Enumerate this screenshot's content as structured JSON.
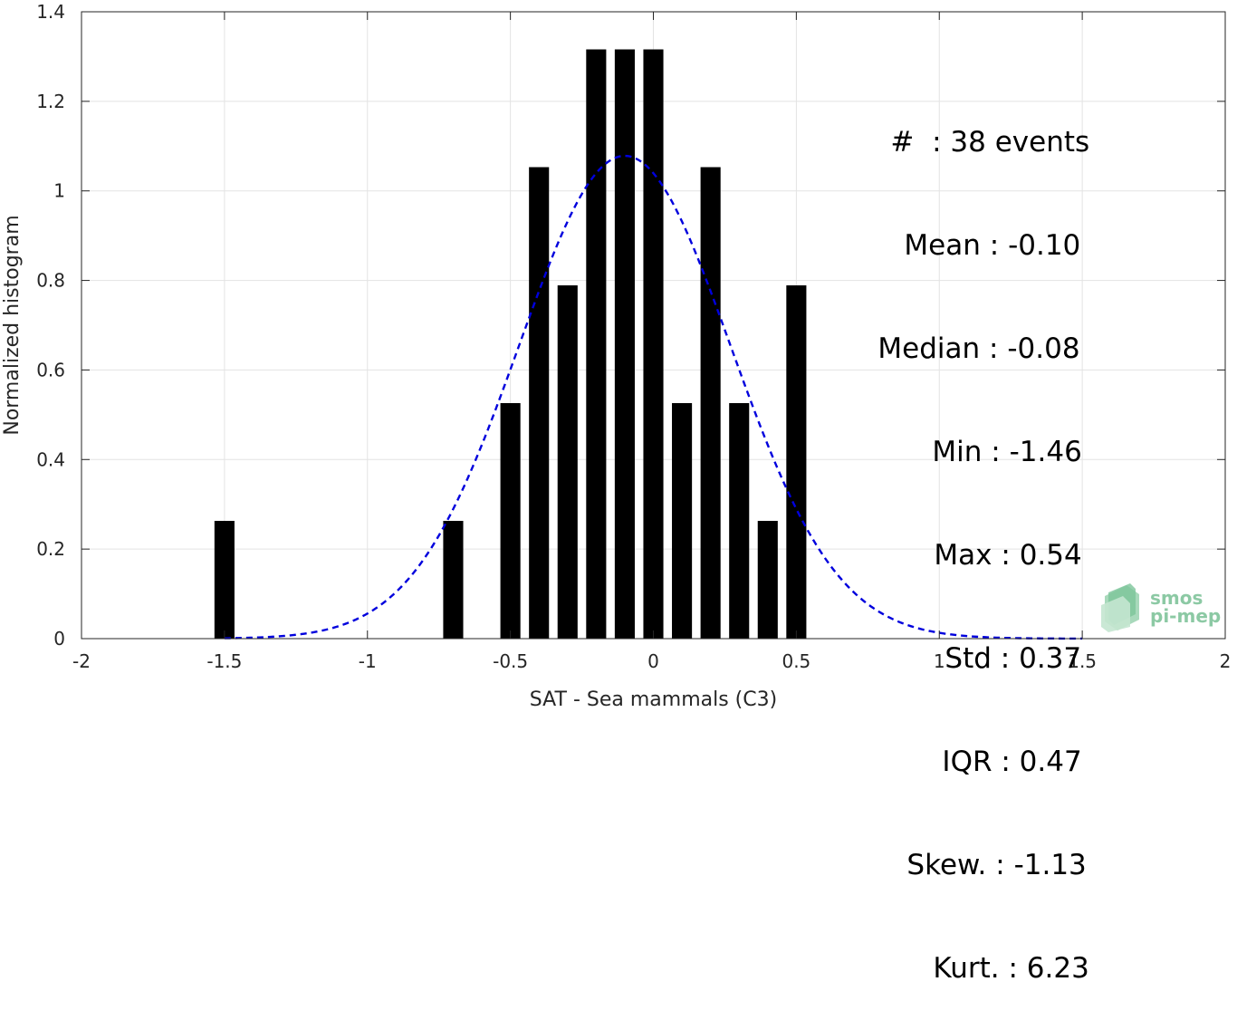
{
  "chart_data": {
    "type": "bar",
    "xlabel": "SAT - Sea mammals (C3)",
    "ylabel": "Normalized histogram",
    "xlim": [
      -2,
      2
    ],
    "ylim": [
      0,
      1.4
    ],
    "xticks": [
      "-2",
      "-1.5",
      "-1",
      "-0.5",
      "0",
      "0.5",
      "1",
      "1.5",
      "2"
    ],
    "yticks": [
      "0",
      "0.2",
      "0.4",
      "0.6",
      "0.8",
      "1",
      "1.2",
      "1.4"
    ],
    "grid": true,
    "bar_color": "#000000",
    "bars": [
      {
        "x": -1.5,
        "value": 0.263
      },
      {
        "x": -0.7,
        "value": 0.263
      },
      {
        "x": -0.5,
        "value": 0.526
      },
      {
        "x": -0.4,
        "value": 1.053
      },
      {
        "x": -0.3,
        "value": 0.789
      },
      {
        "x": -0.2,
        "value": 1.316
      },
      {
        "x": -0.1,
        "value": 1.316
      },
      {
        "x": 0.0,
        "value": 1.316
      },
      {
        "x": 0.1,
        "value": 0.526
      },
      {
        "x": 0.2,
        "value": 1.053
      },
      {
        "x": 0.3,
        "value": 0.526
      },
      {
        "x": 0.4,
        "value": 0.263
      },
      {
        "x": 0.5,
        "value": 0.789
      }
    ],
    "fit_curve": {
      "style": "dashed",
      "color": "#0000dd",
      "mean": -0.1,
      "std": 0.37,
      "x_range": [
        -1.5,
        1.5
      ]
    },
    "annotation": [
      {
        "label": "#  ",
        "sep": ": ",
        "value": "38 events"
      },
      {
        "label": "Mean ",
        "sep": ": ",
        "value": "-0.10"
      },
      {
        "label": "Median ",
        "sep": ": ",
        "value": "-0.08"
      },
      {
        "label": "Min ",
        "sep": ": ",
        "value": "-1.46"
      },
      {
        "label": "Max ",
        "sep": ": ",
        "value": "0.54"
      },
      {
        "label": "Std ",
        "sep": ": ",
        "value": "0.37"
      },
      {
        "label": "IQR ",
        "sep": ": ",
        "value": "0.47"
      },
      {
        "label": "Skew. ",
        "sep": ": ",
        "value": "-1.13"
      },
      {
        "label": "Kurt. ",
        "sep": ": ",
        "value": "6.23"
      }
    ]
  },
  "logo": {
    "line1": "smos",
    "line2": "pi-mep",
    "color": "#8cc9a4"
  }
}
